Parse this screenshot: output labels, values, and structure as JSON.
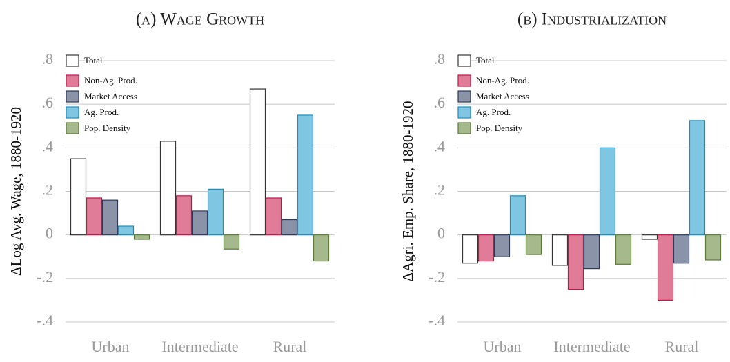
{
  "chart_data": [
    {
      "type": "bar",
      "title": "(a) Wage Growth",
      "ylabel": "ΔLog Avg. Wage, 1880-1920",
      "categories": [
        "Urban",
        "Intermediate",
        "Rural"
      ],
      "series": [
        {
          "name": "Total",
          "color": "#ffffff",
          "edgecolor": "#333333",
          "values": [
            0.35,
            0.43,
            0.67
          ]
        },
        {
          "name": "Non-Ag. Prod.",
          "color": "#e07c97",
          "edgecolor": "#c0164a",
          "values": [
            0.17,
            0.18,
            0.17
          ]
        },
        {
          "name": "Market Access",
          "color": "#8a93a8",
          "edgecolor": "#2f3a5a",
          "values": [
            0.16,
            0.11,
            0.07
          ]
        },
        {
          "name": "Ag. Prod.",
          "color": "#7ec6e2",
          "edgecolor": "#1a8ebf",
          "values": [
            0.04,
            0.21,
            0.55
          ]
        },
        {
          "name": "Pop. Density",
          "color": "#a6b98c",
          "edgecolor": "#5a7a3a",
          "values": [
            -0.02,
            -0.065,
            -0.12
          ]
        }
      ],
      "ylim": [
        -0.4,
        0.8
      ],
      "yticks": [
        {
          "value": -0.4,
          "label": "-.4"
        },
        {
          "value": -0.2,
          "label": "-.2"
        },
        0,
        {
          "value": 0.2,
          "label": ".2"
        },
        {
          "value": 0.4,
          "label": ".4"
        },
        {
          "value": 0.6,
          "label": ".6"
        },
        {
          "value": 0.8,
          "label": ".8"
        }
      ],
      "grid": true,
      "legend": "upper left"
    },
    {
      "type": "bar",
      "title": "(b) Industrialization",
      "ylabel": "ΔAgri. Emp. Share, 1880-1920",
      "categories": [
        "Urban",
        "Intermediate",
        "Rural"
      ],
      "series": [
        {
          "name": "Total",
          "color": "#ffffff",
          "edgecolor": "#333333",
          "values": [
            -0.13,
            -0.14,
            -0.02
          ]
        },
        {
          "name": "Non-Ag. Prod.",
          "color": "#e07c97",
          "edgecolor": "#c0164a",
          "values": [
            -0.12,
            -0.25,
            -0.3
          ]
        },
        {
          "name": "Market Access",
          "color": "#8a93a8",
          "edgecolor": "#2f3a5a",
          "values": [
            -0.1,
            -0.155,
            -0.13
          ]
        },
        {
          "name": "Ag. Prod.",
          "color": "#7ec6e2",
          "edgecolor": "#1a8ebf",
          "values": [
            0.18,
            0.4,
            0.525
          ]
        },
        {
          "name": "Pop. Density",
          "color": "#a6b98c",
          "edgecolor": "#5a7a3a",
          "values": [
            -0.09,
            -0.135,
            -0.115
          ]
        }
      ],
      "ylim": [
        -0.4,
        0.8
      ],
      "yticks": [
        {
          "value": -0.4,
          "label": "-.4"
        },
        {
          "value": -0.2,
          "label": "-.2"
        },
        0,
        {
          "value": 0.2,
          "label": ".2"
        },
        {
          "value": 0.4,
          "label": ".4"
        },
        {
          "value": 0.6,
          "label": ".6"
        },
        {
          "value": 0.8,
          "label": ".8"
        }
      ],
      "grid": true,
      "legend": "upper left"
    }
  ]
}
